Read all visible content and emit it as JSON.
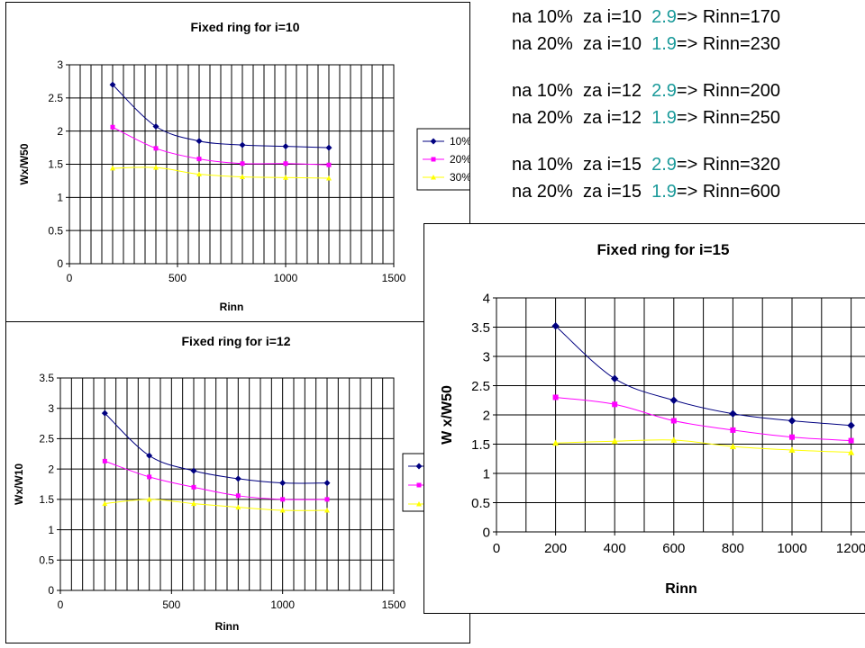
{
  "notes": [
    {
      "prefix": "na 10%  za i=10  ",
      "value": "2.9",
      "suffix": "=> Rinn=170"
    },
    {
      "prefix": "na 20%  za i=10  ",
      "value": "1.9",
      "suffix": "=> Rinn=230"
    },
    {
      "prefix": "na 10%  za i=12  ",
      "value": "2.9",
      "suffix": "=> Rinn=200"
    },
    {
      "prefix": "na 20%  za i=12  ",
      "value": "1.9",
      "suffix": "=> Rinn=250"
    },
    {
      "prefix": "na 10%  za i=15  ",
      "value": "2.9",
      "suffix": "=> Rinn=320"
    },
    {
      "prefix": "na 20%  za i=15  ",
      "value": "1.9",
      "suffix": "=> Rinn=600"
    }
  ],
  "colors": {
    "series_10": "#000080",
    "series_20": "#ff00ff",
    "series_30": "#ffff00",
    "note_value": "#1a9a9a",
    "grid": "#000000"
  },
  "chart_data": [
    {
      "type": "line",
      "title": "Fixed ring for i=10",
      "xlabel": "Rinn",
      "ylabel": "Wx/W50",
      "xlim": [
        0,
        1500
      ],
      "ylim": [
        0,
        3
      ],
      "xticks": [
        0,
        500,
        1000,
        1500
      ],
      "xtick_labels": [
        "0",
        "500",
        "1000",
        "1500"
      ],
      "yticks": [
        0,
        0.5,
        1,
        1.5,
        2,
        2.5,
        3
      ],
      "ytick_labels": [
        "0",
        "0.5",
        "1",
        "1.5",
        "2",
        "2.5",
        "3"
      ],
      "grid": true,
      "legend": "right",
      "x": [
        200,
        400,
        600,
        800,
        1000,
        1200
      ],
      "series": [
        {
          "name": "10%",
          "values": [
            2.7,
            2.07,
            1.85,
            1.79,
            1.77,
            1.75
          ]
        },
        {
          "name": "20%",
          "values": [
            2.06,
            1.74,
            1.58,
            1.51,
            1.51,
            1.49
          ]
        },
        {
          "name": "30%",
          "values": [
            1.44,
            1.45,
            1.35,
            1.31,
            1.3,
            1.29
          ]
        }
      ]
    },
    {
      "type": "line",
      "title": "Fixed ring for i=12",
      "xlabel": "Rinn",
      "ylabel": "Wx/W10",
      "xlim": [
        0,
        1500
      ],
      "ylim": [
        0,
        3.5
      ],
      "xticks": [
        0,
        500,
        1000,
        1500
      ],
      "xtick_labels": [
        "0",
        "500",
        "1000",
        "1500"
      ],
      "yticks": [
        0,
        0.5,
        1,
        1.5,
        2,
        2.5,
        3,
        3.5
      ],
      "ytick_labels": [
        "0",
        "0.5",
        "1",
        "1.5",
        "2",
        "2.5",
        "3",
        "3.5"
      ],
      "grid": true,
      "legend": "right",
      "x": [
        200,
        400,
        600,
        800,
        1000,
        1200
      ],
      "series": [
        {
          "name": "",
          "values": [
            2.92,
            2.22,
            1.97,
            1.84,
            1.77,
            1.77
          ]
        },
        {
          "name": "",
          "values": [
            2.13,
            1.87,
            1.7,
            1.56,
            1.5,
            1.5
          ]
        },
        {
          "name": "",
          "values": [
            1.43,
            1.5,
            1.43,
            1.37,
            1.32,
            1.32
          ]
        }
      ]
    },
    {
      "type": "line",
      "title": "Fixed ring for i=15",
      "xlabel": "Rinn",
      "ylabel": "W x/W50",
      "xlim": [
        0,
        1250
      ],
      "ylim": [
        0,
        4
      ],
      "xticks": [
        0,
        200,
        400,
        600,
        800,
        1000,
        1200
      ],
      "xtick_labels": [
        "0",
        "200",
        "400",
        "600",
        "800",
        "1000",
        "1200"
      ],
      "yticks": [
        0,
        0.5,
        1,
        1.5,
        2,
        2.5,
        3,
        3.5,
        4
      ],
      "ytick_labels": [
        "0",
        "0.5",
        "1",
        "1.5",
        "2",
        "2.5",
        "3",
        "3.5",
        "4"
      ],
      "grid": true,
      "legend": "none",
      "x": [
        200,
        400,
        600,
        800,
        1000,
        1200
      ],
      "series": [
        {
          "name": "",
          "values": [
            3.52,
            2.62,
            2.25,
            2.02,
            1.9,
            1.82
          ]
        },
        {
          "name": "",
          "values": [
            2.3,
            2.18,
            1.9,
            1.74,
            1.62,
            1.56
          ]
        },
        {
          "name": "",
          "values": [
            1.52,
            1.55,
            1.57,
            1.46,
            1.4,
            1.36
          ]
        }
      ]
    }
  ]
}
